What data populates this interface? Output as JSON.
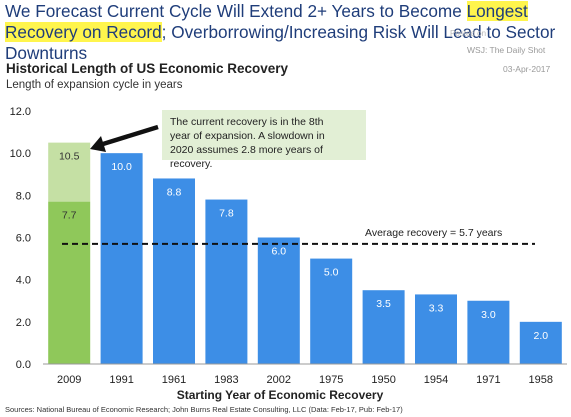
{
  "headline": {
    "part1": "We Forecast Current Cycle Will Extend 2+ Years to Become ",
    "highlight": "Longest Recovery on Record",
    "part2": "; Overborrowing/Increasing Risk Will Lead to Sector Downturns"
  },
  "watermark": {
    "posted": "Posted on",
    "source": "WSJ: The Daily Shot",
    "date": "03-Apr-2017"
  },
  "chart_title": "Historical Length of US Economic Recovery",
  "chart_subtitle": "Length of expansion cycle in years",
  "source_note": "Sources: National Bureau of Economic Research; John Burns Real Estate Consulting, LLC (Data: Feb-17, Pub: Feb-17)",
  "colors": {
    "bar": "#3d8ee6",
    "current": "#8fc85a",
    "projection": "#c5e0a4",
    "annotation_bg": "#e2efd5",
    "headline": "#1f3d7a",
    "highlight": "#fff54d"
  },
  "chart_data": {
    "type": "bar",
    "categories": [
      "2009",
      "1991",
      "1961",
      "1983",
      "2002",
      "1975",
      "1950",
      "1954",
      "1971",
      "1958"
    ],
    "values": [
      10.5,
      10.0,
      8.8,
      7.8,
      6.0,
      5.0,
      3.5,
      3.3,
      3.0,
      2.0
    ],
    "current_actual": 7.7,
    "xlabel": "Starting Year of Economic Recovery",
    "ylabel": "",
    "ylim": [
      0,
      12
    ],
    "yticks": [
      "0.0",
      "2.0",
      "4.0",
      "6.0",
      "8.0",
      "10.0",
      "12.0"
    ],
    "average": {
      "value": 5.7,
      "label": "Average recovery = 5.7 years"
    },
    "annotation": "The current recovery is in the 8th year of expansion. A slowdown in 2020 assumes 2.8 more years of recovery.",
    "grid": false,
    "legend": "none"
  }
}
